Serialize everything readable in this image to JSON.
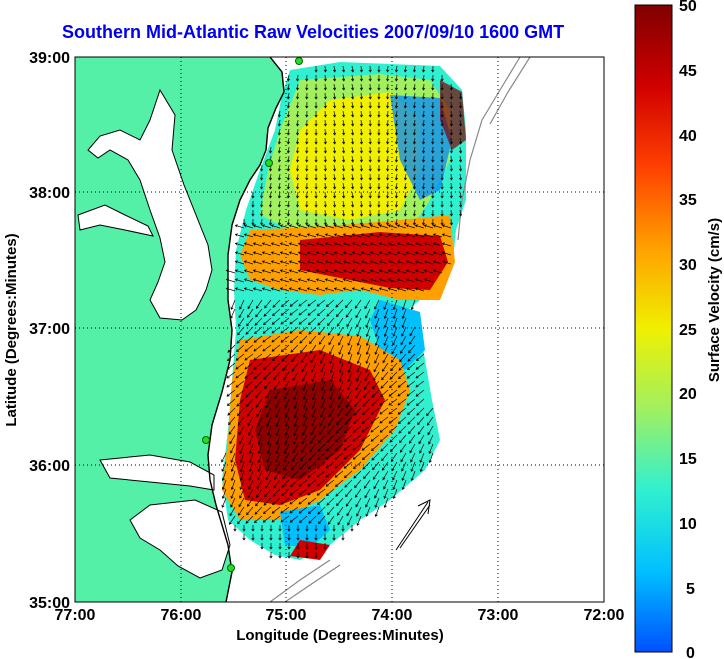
{
  "title": "Southern Mid-Atlantic Raw Velocities 2007/09/10 1600 GMT",
  "x_axis": {
    "label": "Longitude (Degrees:Minutes)",
    "ticks": [
      "77:00",
      "76:00",
      "75:00",
      "74:00",
      "73:00",
      "72:00"
    ]
  },
  "y_axis": {
    "label": "Latitude (Degrees:Minutes)",
    "ticks": [
      "39:00",
      "38:00",
      "37:00",
      "36:00",
      "35:00"
    ]
  },
  "colorbar": {
    "label": "Surface Velocity (cm/s)",
    "ticks": [
      "50",
      "45",
      "40",
      "35",
      "30",
      "25",
      "20",
      "15",
      "10",
      "5",
      "0"
    ],
    "range": [
      0,
      50
    ],
    "colors": [
      "#0050ff",
      "#00c0ff",
      "#30f0d0",
      "#a0f060",
      "#f0f000",
      "#ffa000",
      "#ff4000",
      "#d00000",
      "#800000"
    ]
  },
  "colors": {
    "land": "#55f0a8",
    "water": "#ffffff",
    "coast": "#000000",
    "bathymetry": "#888888",
    "station": "#22dd22",
    "title": "#0000ee"
  }
}
